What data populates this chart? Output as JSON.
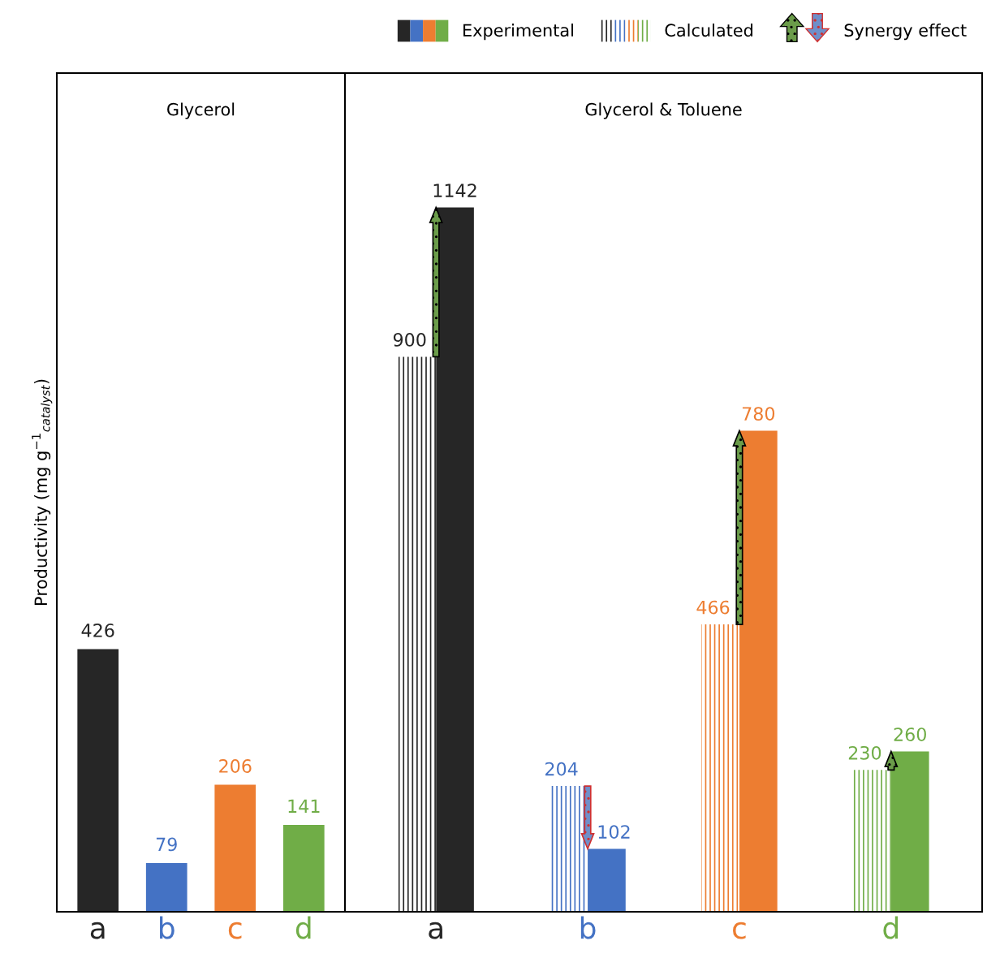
{
  "chart_data": [
    {
      "type": "bar",
      "title": "Glycerol",
      "ylabel": "Productivity (mg g$^{−1}$$_{catalyst}$)",
      "categories": [
        "a",
        "b",
        "c",
        "d"
      ],
      "values": [
        426,
        79,
        206,
        141
      ],
      "colors": [
        "#262626",
        "#4472c4",
        "#ed7d31",
        "#70ad47"
      ],
      "data_labels": true,
      "ylim": [
        0,
        1360
      ],
      "tick_labels": "x"
    },
    {
      "type": "bar",
      "title": "Glycerol & Toluene",
      "categories": [
        "a",
        "b",
        "c",
        "d"
      ],
      "series": [
        {
          "name": "Experimental",
          "colors": [
            "#262626",
            "#4472c4",
            "#ed7d31",
            "#70ad47"
          ],
          "values": [
            1142,
            102,
            780,
            260
          ]
        },
        {
          "name": "Calculated",
          "colors": [
            "#262626",
            "#4472c4",
            "#ed7d31",
            "#70ad47"
          ],
          "values": [
            900,
            204,
            466,
            230
          ]
        }
      ],
      "annotations": [
        "Synergy effect"
      ],
      "data_labels": true,
      "ylim": [
        0,
        1360
      ],
      "tick_labels": "x",
      "legend": "top"
    }
  ]
}
